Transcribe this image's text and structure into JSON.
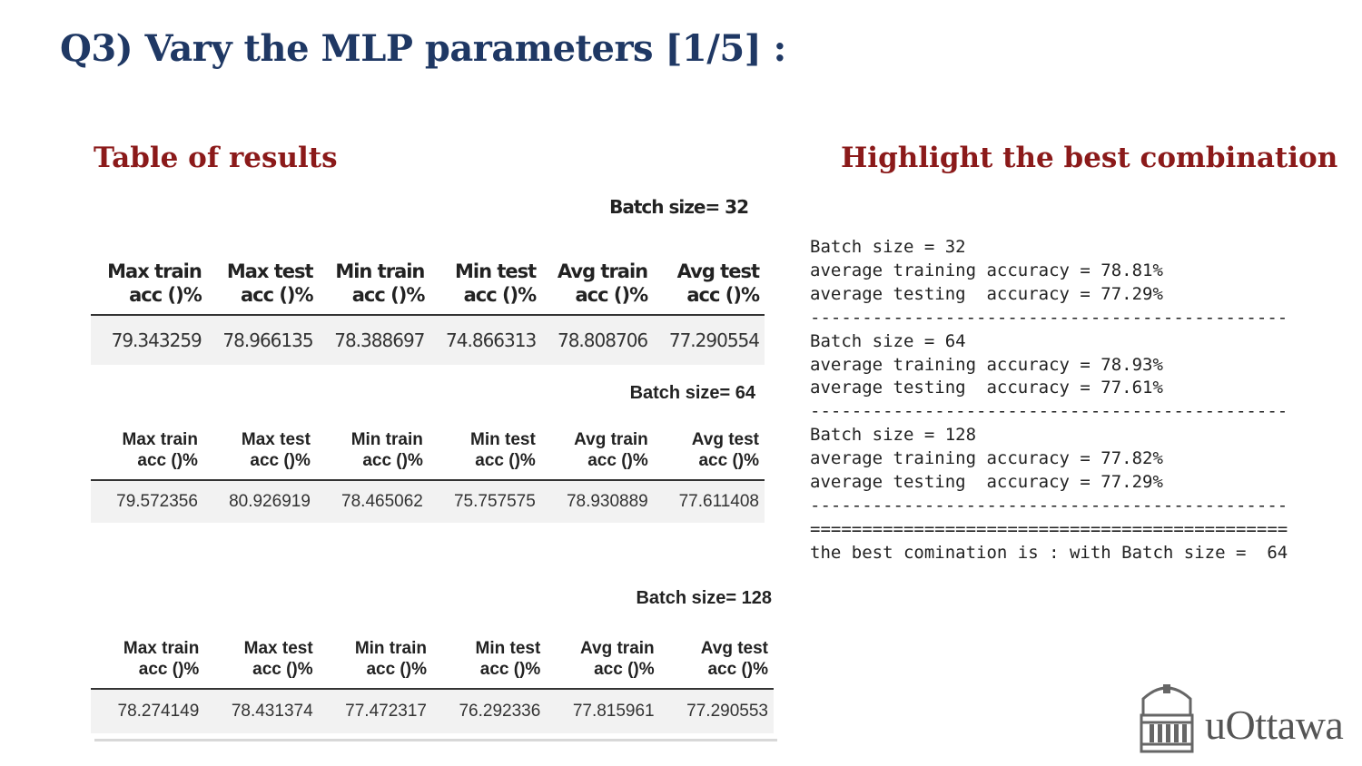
{
  "title": "Q3) Vary the MLP parameters [1/5] :",
  "left_heading": "Table of results",
  "right_heading": "Highlight the best combination",
  "tables": [
    {
      "batch_label": "Batch size= 32",
      "headers": [
        [
          "Max train",
          "acc ()%"
        ],
        [
          "Max test",
          "acc ()%"
        ],
        [
          "Min train",
          "acc ()%"
        ],
        [
          "Min test",
          "acc ()%"
        ],
        [
          "Avg train",
          "acc ()%"
        ],
        [
          "Avg test",
          "acc ()%"
        ]
      ],
      "values": [
        "79.343259",
        "78.966135",
        "78.388697",
        "74.866313",
        "78.808706",
        "77.290554"
      ]
    },
    {
      "batch_label": "Batch size= 64",
      "headers": [
        [
          "Max train",
          "acc ()%"
        ],
        [
          "Max test",
          "acc ()%"
        ],
        [
          "Min train",
          "acc ()%"
        ],
        [
          "Min test",
          "acc ()%"
        ],
        [
          "Avg train",
          "acc ()%"
        ],
        [
          "Avg test",
          "acc ()%"
        ]
      ],
      "values": [
        "79.572356",
        "80.926919",
        "78.465062",
        "75.757575",
        "78.930889",
        "77.611408"
      ]
    },
    {
      "batch_label": "Batch size= 128",
      "headers": [
        [
          "Max train",
          "acc ()%"
        ],
        [
          "Max test",
          "acc ()%"
        ],
        [
          "Min train",
          "acc ()%"
        ],
        [
          "Min test",
          "acc ()%"
        ],
        [
          "Avg train",
          "acc ()%"
        ],
        [
          "Avg test",
          "acc ()%"
        ]
      ],
      "values": [
        "78.274149",
        "78.431374",
        "77.472317",
        "76.292336",
        "77.815961",
        "77.290553"
      ]
    }
  ],
  "console_lines": [
    "Batch size = 32",
    "average training accuracy = 78.81%",
    "average testing  accuracy = 77.29%",
    "----------------------------------------------",
    "Batch size = 64",
    "average training accuracy = 78.93%",
    "average testing  accuracy = 77.61%",
    "----------------------------------------------",
    "Batch size = 128",
    "average training accuracy = 77.82%",
    "average testing  accuracy = 77.29%",
    "----------------------------------------------",
    "==============================================",
    "the best comination is : with Batch size =  64"
  ],
  "logo_text": "uOttawa",
  "colors": {
    "title": "#1f3864",
    "heading": "#8b1a1a",
    "row_bg": "#f2f2f2"
  }
}
